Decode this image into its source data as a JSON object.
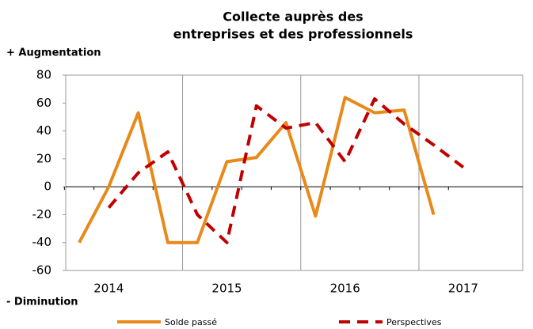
{
  "chart_data": {
    "type": "line",
    "title": [
      "Collecte auprès des",
      "entreprises et des professionnels"
    ],
    "y_top_label": "+ Augmentation",
    "y_bottom_label": "- Diminution",
    "categories": [
      null,
      "2014",
      null,
      null,
      null,
      "2015",
      null,
      null,
      null,
      "2016",
      null,
      null,
      null,
      "2017"
    ],
    "series": [
      {
        "name": "Solde passé",
        "color": "#e8891a",
        "dashed": false,
        "values": [
          -40,
          0,
          53,
          -40,
          -40,
          18,
          21,
          46,
          -21,
          64,
          53,
          55,
          -20,
          null
        ]
      },
      {
        "name": "Perspectives",
        "color": "#c00000",
        "dashed": true,
        "values": [
          null,
          -15,
          10,
          25,
          -20,
          -40,
          58,
          42,
          46,
          18,
          63,
          45,
          30,
          14
        ]
      }
    ],
    "ylim": [
      -60,
      80
    ],
    "yticks": [
      -60,
      -40,
      -20,
      0,
      20,
      40,
      60,
      80
    ]
  }
}
